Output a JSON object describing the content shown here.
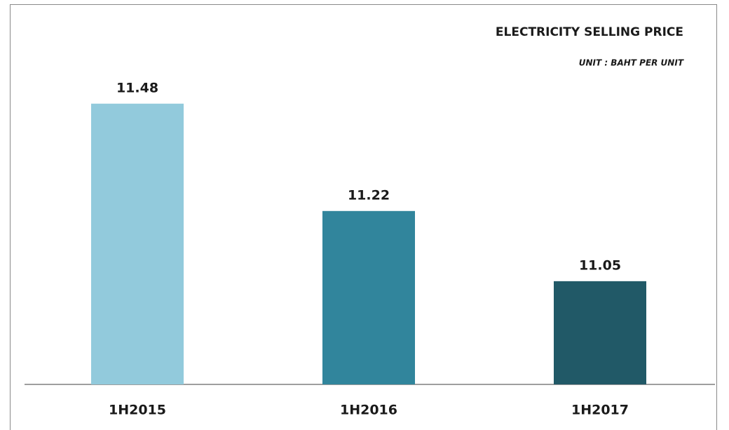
{
  "chart_data": {
    "type": "bar",
    "title": "ELECTRICITY SELLING PRICE",
    "subtitle": "UNIT : BAHT PER UNIT",
    "categories": [
      "1H2015",
      "1H2016",
      "1H2017"
    ],
    "values": [
      11.48,
      11.22,
      11.05
    ],
    "colors": [
      "#92cadc",
      "#31859c",
      "#215967"
    ],
    "ylim": [
      10.8,
      11.5
    ]
  }
}
